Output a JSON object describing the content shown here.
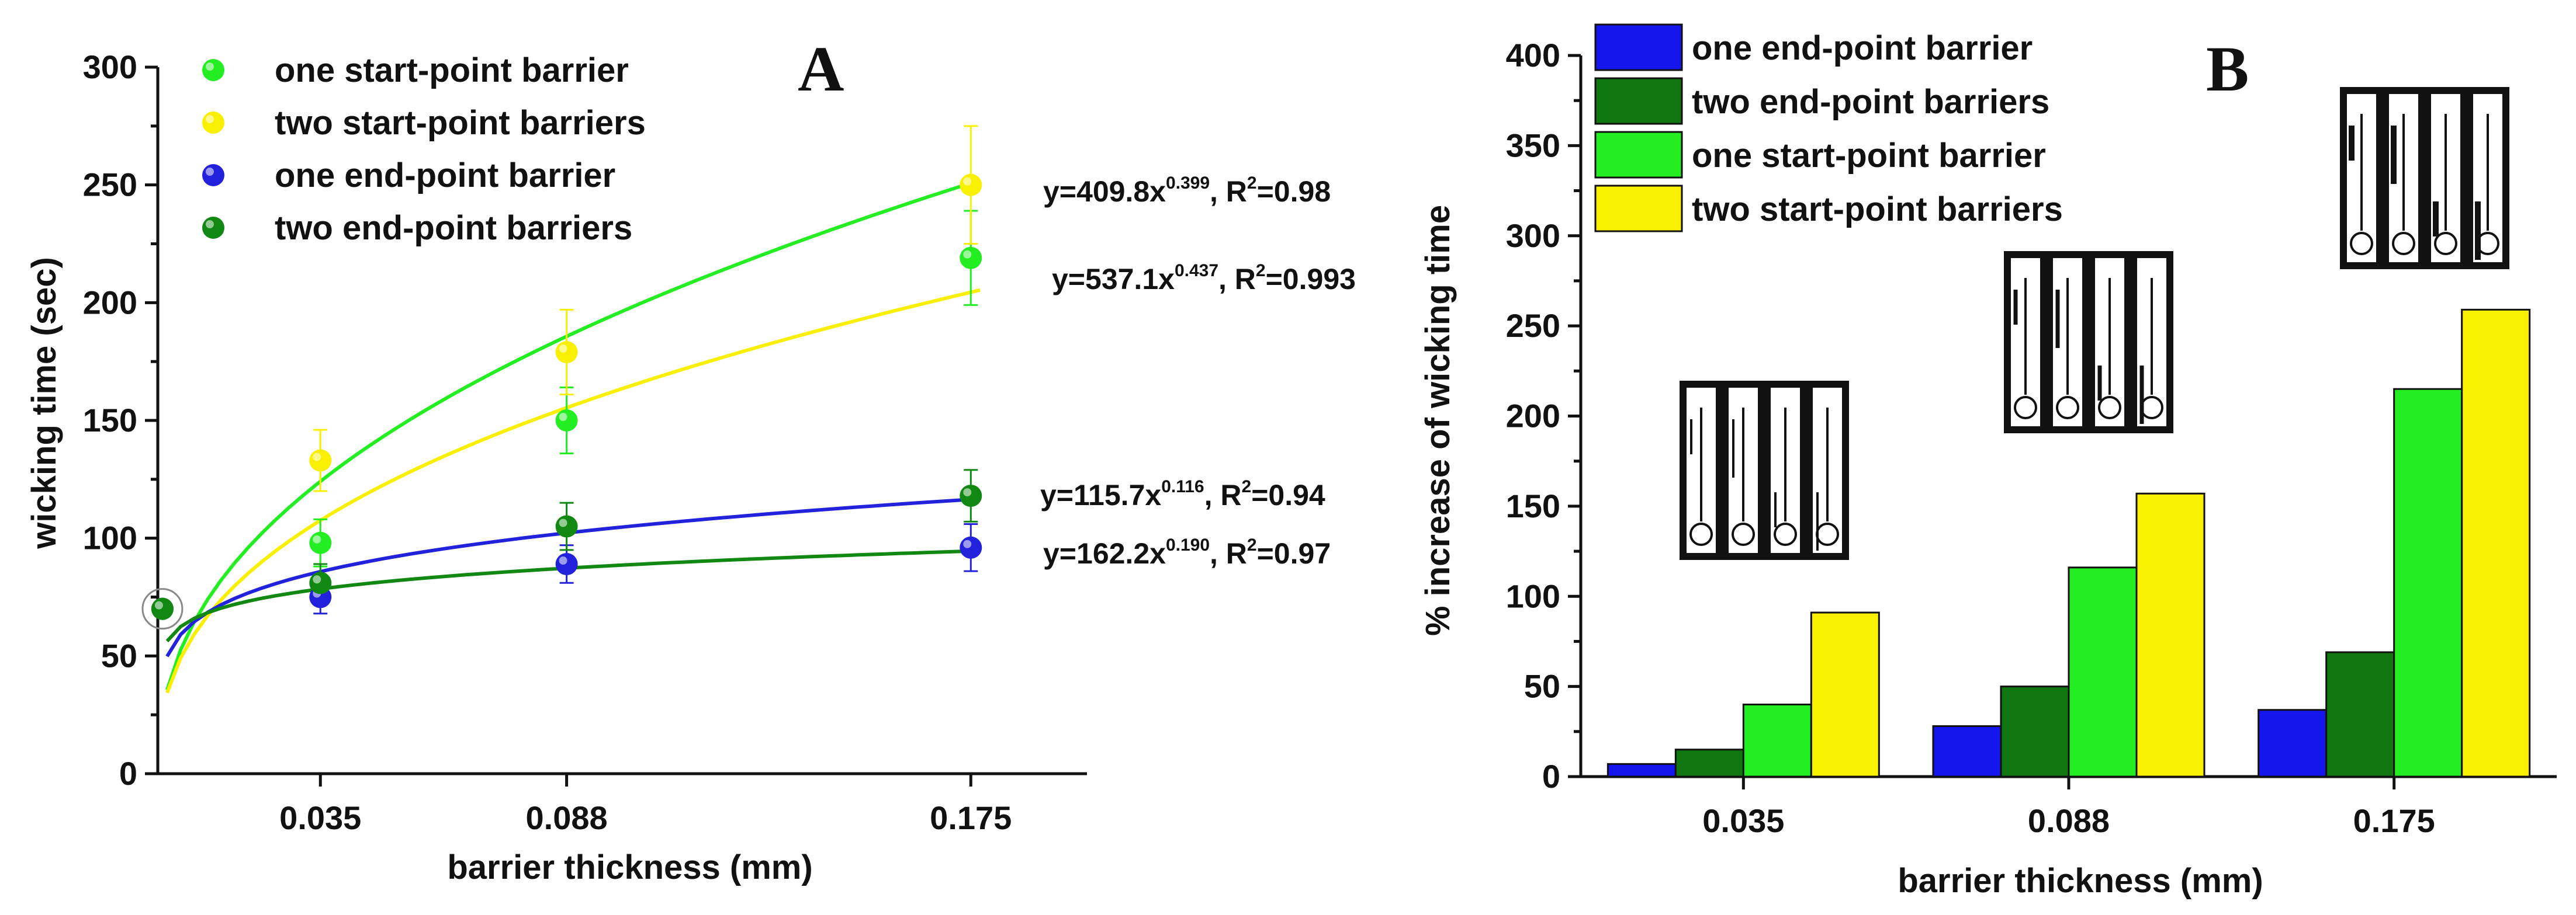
{
  "chart_data": [
    {
      "type": "scatter",
      "panel_label": "A",
      "xlabel": "barrier thickness (mm)",
      "ylabel": "wicking time (sec)",
      "xlim": [
        0,
        0.2
      ],
      "ylim": [
        0,
        300
      ],
      "x_ticks": [
        0.035,
        0.088,
        0.175
      ],
      "x_tick_labels": [
        "0.035",
        "0.088",
        "0.175"
      ],
      "y_ticks": [
        0,
        50,
        100,
        150,
        200,
        250,
        300
      ],
      "legend_position": "top-left",
      "series": [
        {
          "name": "one start-point barrier",
          "color": "#22ee22",
          "x": [
            0.001,
            0.035,
            0.088,
            0.175
          ],
          "y": [
            70,
            98,
            150,
            219
          ],
          "err": [
            3,
            10,
            14,
            20
          ],
          "fit": {
            "a": 537.1,
            "b": 0.437,
            "equation": "y=537.1x",
            "exponent": "0.437",
            "r2": "R2=0.993"
          }
        },
        {
          "name": "two start-point barriers",
          "color": "#f8f000",
          "x": [
            0.001,
            0.035,
            0.088,
            0.175
          ],
          "y": [
            70,
            133,
            179,
            250
          ],
          "err": [
            3,
            13,
            18,
            25
          ],
          "fit": {
            "a": 409.8,
            "b": 0.399,
            "equation": "y=409.8x",
            "exponent": "0.399",
            "r2": "R2=0.98"
          }
        },
        {
          "name": "one end-point barrier",
          "color": "#2222dd",
          "x": [
            0.001,
            0.035,
            0.088,
            0.175
          ],
          "y": [
            70,
            75,
            89,
            96
          ],
          "err": [
            3,
            7,
            8,
            10
          ],
          "fit": {
            "a": 162.2,
            "b": 0.19,
            "equation": "y=162.2x",
            "exponent": "0.190",
            "r2": "R2=0.97"
          }
        },
        {
          "name": "two end-point barriers",
          "color": "#118811",
          "x": [
            0.001,
            0.035,
            0.088,
            0.175
          ],
          "y": [
            70,
            81,
            105,
            118
          ],
          "err": [
            3,
            8,
            10,
            11
          ],
          "fit": {
            "a": 115.7,
            "b": 0.116,
            "equation": "y=115.7x",
            "exponent": "0.116",
            "r2": "R2=0.94"
          }
        }
      ]
    },
    {
      "type": "bar",
      "panel_label": "B",
      "xlabel": "barrier thickness (mm)",
      "ylabel": "% increase of wicking time",
      "ylim": [
        0,
        400
      ],
      "y_ticks": [
        0,
        50,
        100,
        150,
        200,
        250,
        300,
        350,
        400
      ],
      "categories": [
        "0.035",
        "0.088",
        "0.175"
      ],
      "legend_position": "top-left",
      "series": [
        {
          "name": "one end-point barrier",
          "color": "#1515ee",
          "values": [
            7,
            28,
            37
          ]
        },
        {
          "name": "two end-point barriers",
          "color": "#117711",
          "values": [
            15,
            50,
            69
          ]
        },
        {
          "name": "one start-point barrier",
          "color": "#22ee22",
          "values": [
            40,
            116,
            215
          ]
        },
        {
          "name": "two start-point barriers",
          "color": "#f8f000",
          "values": [
            91,
            157,
            259
          ]
        }
      ]
    }
  ]
}
